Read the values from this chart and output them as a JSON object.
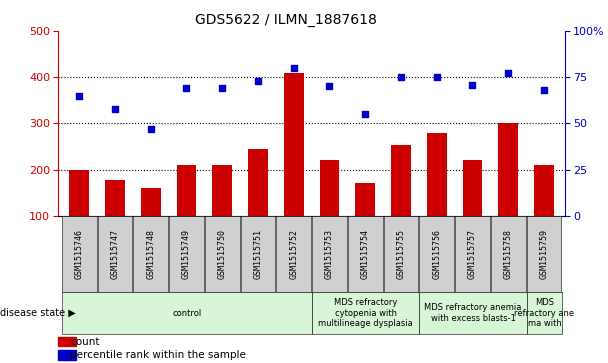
{
  "title": "GDS5622 / ILMN_1887618",
  "samples": [
    "GSM1515746",
    "GSM1515747",
    "GSM1515748",
    "GSM1515749",
    "GSM1515750",
    "GSM1515751",
    "GSM1515752",
    "GSM1515753",
    "GSM1515754",
    "GSM1515755",
    "GSM1515756",
    "GSM1515757",
    "GSM1515758",
    "GSM1515759"
  ],
  "counts": [
    200,
    178,
    160,
    210,
    210,
    245,
    410,
    220,
    172,
    253,
    280,
    222,
    300,
    210
  ],
  "percentiles": [
    65,
    58,
    47,
    69,
    69,
    73,
    80,
    70,
    55,
    75,
    75,
    71,
    77,
    68
  ],
  "ylim_left": [
    100,
    500
  ],
  "ylim_right": [
    0,
    100
  ],
  "yticks_left": [
    100,
    200,
    300,
    400,
    500
  ],
  "yticks_right": [
    0,
    25,
    50,
    75,
    100
  ],
  "bar_color": "#cc0000",
  "dot_color": "#0000cc",
  "disease_groups": [
    {
      "label": "control",
      "start": 0,
      "end": 7,
      "color": "#d8f0d8"
    },
    {
      "label": "MDS refractory\ncytopenia with\nmultilineage dysplasia",
      "start": 7,
      "end": 10,
      "color": "#d8f0d8"
    },
    {
      "label": "MDS refractory anemia\nwith excess blasts-1",
      "start": 10,
      "end": 13,
      "color": "#d8f0d8"
    },
    {
      "label": "MDS\nrefractory ane\nma with",
      "start": 13,
      "end": 14,
      "color": "#d8f0d8"
    }
  ],
  "disease_state_label": "disease state",
  "legend_count_label": "count",
  "legend_percentile_label": "percentile rank within the sample",
  "tick_label_bg": "#d0d0d0",
  "grid_dotted_color": "#000000"
}
